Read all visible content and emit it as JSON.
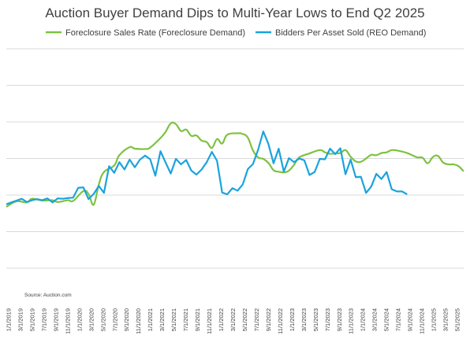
{
  "chart_data": {
    "type": "line",
    "title": "Auction Buyer Demand Dips to Multi-Year Lows to End Q2 2025",
    "source": "Source: Auction.com",
    "grid": true,
    "legend_position": "top",
    "xlabel": "",
    "ylabel": "",
    "x_tick_labels": [
      "1/1/2019",
      "3/1/2019",
      "5/1/2019",
      "7/1/2019",
      "9/1/2019",
      "11/1/2019",
      "1/1/2020",
      "3/1/2020",
      "5/1/2020",
      "7/1/2020",
      "9/1/2020",
      "11/1/2020",
      "1/1/2021",
      "3/1/2021",
      "5/1/2021",
      "7/1/2021",
      "9/1/2021",
      "11/1/2021",
      "1/1/2022",
      "3/1/2022",
      "5/1/2022",
      "7/1/2022",
      "9/1/2022",
      "11/1/2022",
      "1/1/2023",
      "3/1/2023",
      "5/1/2023",
      "7/1/2023",
      "9/1/2023",
      "11/1/2023",
      "1/1/2024",
      "3/1/2024",
      "5/1/2024",
      "7/1/2024",
      "9/1/2024",
      "11/1/2024",
      "1/1/2025",
      "3/1/2025",
      "5/1/2025"
    ],
    "y_gridlines": 7,
    "series": [
      {
        "name": "Foreclosure Sales Rate (Foreclosure Demand)",
        "color": "#7DC242",
        "smooth": true,
        "points": [
          [
            0,
            3.45
          ],
          [
            2,
            4.2
          ],
          [
            4,
            4.05
          ],
          [
            5,
            4.55
          ],
          [
            7,
            4.3
          ],
          [
            9,
            4.35
          ],
          [
            10,
            4.1
          ],
          [
            12,
            4.35
          ],
          [
            13,
            4.25
          ],
          [
            15,
            5.6
          ],
          [
            16,
            5.2
          ],
          [
            17,
            3.75
          ],
          [
            18,
            6.5
          ],
          [
            19,
            8.2
          ],
          [
            21,
            9.1
          ],
          [
            22,
            10.5
          ],
          [
            24,
            11.6
          ],
          [
            25,
            11.4
          ],
          [
            27,
            11.35
          ],
          [
            28,
            11.55
          ],
          [
            30,
            12.85
          ],
          [
            31,
            13.7
          ],
          [
            32,
            14.85
          ],
          [
            33,
            14.75
          ],
          [
            34,
            13.8
          ],
          [
            35,
            14.0
          ],
          [
            36,
            13.15
          ],
          [
            37,
            13.2
          ],
          [
            38,
            12.5
          ],
          [
            39,
            12.3
          ],
          [
            40,
            11.5
          ],
          [
            41,
            12.7
          ],
          [
            42,
            12.1
          ],
          [
            43,
            13.3
          ],
          [
            45,
            13.5
          ],
          [
            46,
            13.4
          ],
          [
            47,
            12.9
          ],
          [
            48,
            11.15
          ],
          [
            49,
            10.2
          ],
          [
            50,
            10.0
          ],
          [
            51,
            9.45
          ],
          [
            52,
            8.45
          ],
          [
            53,
            8.25
          ],
          [
            54,
            8.15
          ],
          [
            55,
            8.4
          ],
          [
            56,
            9.2
          ],
          [
            57,
            10.2
          ],
          [
            59,
            10.75
          ],
          [
            61,
            11.2
          ],
          [
            62,
            10.9
          ],
          [
            63,
            10.7
          ],
          [
            64,
            10.75
          ],
          [
            65,
            10.8
          ],
          [
            66,
            11.2
          ],
          [
            67,
            10.3
          ],
          [
            68,
            9.65
          ],
          [
            69,
            9.6
          ],
          [
            70,
            10.05
          ],
          [
            71,
            10.55
          ],
          [
            72,
            10.5
          ],
          [
            73,
            10.8
          ],
          [
            74,
            10.9
          ],
          [
            75,
            11.2
          ],
          [
            76,
            11.15
          ],
          [
            77,
            11.0
          ],
          [
            78,
            10.8
          ],
          [
            79,
            10.5
          ],
          [
            80,
            10.2
          ],
          [
            81,
            10.15
          ],
          [
            82,
            9.4
          ],
          [
            83,
            10.25
          ],
          [
            84,
            10.4
          ],
          [
            85,
            9.5
          ],
          [
            86,
            9.25
          ],
          [
            87,
            9.25
          ],
          [
            88,
            9.0
          ],
          [
            89,
            8.3
          ]
        ]
      },
      {
        "name": "Bidders Per Asset Sold (REO Demand)",
        "color": "#1AA3DD",
        "smooth": false,
        "points": [
          [
            0,
            3.8
          ],
          [
            1,
            4.05
          ],
          [
            2,
            4.3
          ],
          [
            3,
            4.55
          ],
          [
            4,
            4.1
          ],
          [
            5,
            4.35
          ],
          [
            6,
            4.5
          ],
          [
            7,
            4.35
          ],
          [
            8,
            4.6
          ],
          [
            9,
            4.05
          ],
          [
            10,
            4.6
          ],
          [
            11,
            4.55
          ],
          [
            12,
            4.65
          ],
          [
            13,
            4.7
          ],
          [
            14,
            6.05
          ],
          [
            15,
            6.1
          ],
          [
            16,
            4.5
          ],
          [
            17,
            5.2
          ],
          [
            18,
            6.3
          ],
          [
            19,
            5.35
          ],
          [
            20,
            9.0
          ],
          [
            21,
            8.1
          ],
          [
            22,
            9.55
          ],
          [
            23,
            8.55
          ],
          [
            24,
            9.9
          ],
          [
            25,
            8.85
          ],
          [
            26,
            9.9
          ],
          [
            27,
            10.45
          ],
          [
            28,
            9.95
          ],
          [
            29,
            7.7
          ],
          [
            30,
            11.05
          ],
          [
            31,
            9.5
          ],
          [
            32,
            8.0
          ],
          [
            33,
            10.0
          ],
          [
            34,
            9.25
          ],
          [
            35,
            9.85
          ],
          [
            36,
            8.4
          ],
          [
            37,
            7.85
          ],
          [
            38,
            8.55
          ],
          [
            39,
            9.55
          ],
          [
            40,
            10.95
          ],
          [
            41,
            9.75
          ],
          [
            42,
            5.4
          ],
          [
            43,
            5.15
          ],
          [
            44,
            6.0
          ],
          [
            45,
            5.65
          ],
          [
            46,
            6.5
          ],
          [
            47,
            8.6
          ],
          [
            48,
            9.3
          ],
          [
            49,
            11.25
          ],
          [
            50,
            13.75
          ],
          [
            51,
            12.05
          ],
          [
            52,
            9.4
          ],
          [
            53,
            11.4
          ],
          [
            54,
            8.25
          ],
          [
            55,
            10.1
          ],
          [
            56,
            9.55
          ],
          [
            57,
            10.05
          ],
          [
            58,
            9.8
          ],
          [
            59,
            7.8
          ],
          [
            60,
            8.2
          ],
          [
            61,
            10.0
          ],
          [
            62,
            9.95
          ],
          [
            63,
            11.4
          ],
          [
            64,
            10.65
          ],
          [
            65,
            11.45
          ],
          [
            66,
            7.9
          ],
          [
            67,
            9.9
          ],
          [
            68,
            7.5
          ],
          [
            69,
            7.55
          ],
          [
            70,
            5.35
          ],
          [
            71,
            6.2
          ],
          [
            72,
            7.95
          ],
          [
            73,
            7.25
          ],
          [
            74,
            8.2
          ],
          [
            75,
            5.85
          ],
          [
            76,
            5.55
          ],
          [
            77,
            5.55
          ],
          [
            78,
            5.15
          ]
        ]
      }
    ]
  }
}
